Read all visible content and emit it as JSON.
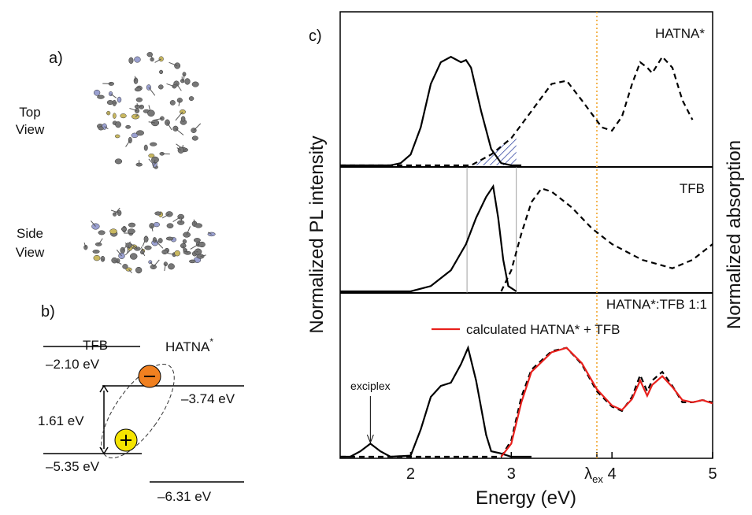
{
  "panel_a": {
    "label": "a)",
    "top_view": [
      "Top",
      "View"
    ],
    "side_view": [
      "Side",
      "View"
    ]
  },
  "panel_b": {
    "label": "b)",
    "tfb": "TFB",
    "hatna": "HATNA",
    "hatna_sup": "*",
    "levels": [
      "–2.10 eV",
      "–3.74 eV",
      "–5.35 eV",
      "–6.31 eV"
    ],
    "gap": "1.61 eV"
  },
  "chart_data": {
    "type": "line",
    "label": "c)",
    "xlabel": "Energy (eV)",
    "ylabel": "Normalized PL intensity",
    "y2label": "Normalized absorption",
    "xlim": [
      1.3,
      5
    ],
    "xticks": [
      2,
      3,
      {
        "value": 3.85,
        "label": "λ",
        "sub": "ex"
      },
      4,
      5
    ],
    "excitation": 3.85,
    "guides": [
      2.56,
      3.05
    ],
    "annotation": {
      "text": "exciplex",
      "x": 1.6
    },
    "panels": [
      {
        "title": "HATNA*",
        "ylim": [
          0,
          1.4
        ],
        "series": [
          {
            "style": "solid",
            "color": "#000000",
            "x": [
              1.3,
              1.8,
              1.9,
              2.0,
              2.1,
              2.2,
              2.3,
              2.4,
              2.5,
              2.55,
              2.6,
              2.7,
              2.8,
              2.9,
              3.0,
              3.1
            ],
            "values": [
              0,
              0,
              0.02,
              0.1,
              0.35,
              0.75,
              0.95,
              1.0,
              0.95,
              0.97,
              0.9,
              0.5,
              0.15,
              0.02,
              0,
              0
            ]
          },
          {
            "style": "dashed",
            "color": "#000000",
            "x": [
              1.3,
              2.6,
              2.8,
              3.0,
              3.2,
              3.4,
              3.55,
              3.7,
              3.9,
              4.0,
              4.1,
              4.2,
              4.28,
              4.35,
              4.4,
              4.5,
              4.6,
              4.7,
              4.8
            ],
            "values": [
              0,
              0,
              0.1,
              0.25,
              0.5,
              0.75,
              0.78,
              0.6,
              0.35,
              0.32,
              0.45,
              0.75,
              0.95,
              0.9,
              0.85,
              1.0,
              0.9,
              0.6,
              0.42
            ]
          }
        ]
      },
      {
        "title": "TFB",
        "ylim": [
          0,
          1.17
        ],
        "series": [
          {
            "style": "solid",
            "color": "#000000",
            "x": [
              1.3,
              2.0,
              2.2,
              2.4,
              2.55,
              2.65,
              2.75,
              2.82,
              2.87,
              2.92,
              2.97,
              3.05
            ],
            "values": [
              0,
              0,
              0.05,
              0.2,
              0.45,
              0.7,
              0.9,
              1.0,
              0.7,
              0.3,
              0.05,
              0
            ]
          },
          {
            "style": "dashed",
            "color": "#000000",
            "x": [
              2.9,
              3.0,
              3.1,
              3.2,
              3.3,
              3.4,
              3.6,
              3.8,
              4.0,
              4.3,
              4.6,
              4.8,
              5.0
            ],
            "values": [
              0,
              0.2,
              0.55,
              0.85,
              0.98,
              0.95,
              0.8,
              0.6,
              0.45,
              0.3,
              0.22,
              0.3,
              0.45
            ]
          }
        ]
      },
      {
        "title": "HATNA*:TFB 1:1",
        "ylim": [
          0,
          1.49
        ],
        "series": [
          {
            "style": "solid",
            "color": "#000000",
            "x": [
              1.3,
              1.4,
              1.5,
              1.6,
              1.7,
              1.8,
              2.0,
              2.1,
              2.2,
              2.3,
              2.4,
              2.5,
              2.57,
              2.65,
              2.75,
              2.8,
              2.9,
              3.0,
              3.2
            ],
            "values": [
              0,
              0,
              0.05,
              0.12,
              0.05,
              0,
              0.01,
              0.25,
              0.55,
              0.65,
              0.68,
              0.85,
              1.0,
              0.7,
              0.2,
              0.05,
              0.03,
              0,
              0
            ]
          },
          {
            "style": "dashed",
            "color": "#000000",
            "x": [
              1.3,
              2.9,
              3.0,
              3.1,
              3.2,
              3.4,
              3.55,
              3.7,
              3.85,
              4.0,
              4.1,
              4.2,
              4.28,
              4.35,
              4.4,
              4.5,
              4.6,
              4.7,
              4.8,
              4.9,
              5.0
            ],
            "values": [
              0,
              0,
              0.15,
              0.55,
              0.8,
              0.97,
              1.0,
              0.85,
              0.6,
              0.46,
              0.42,
              0.55,
              0.75,
              0.6,
              0.7,
              0.78,
              0.65,
              0.5,
              0.5,
              0.52,
              0.5
            ]
          },
          {
            "name": "calculated HATNA* + TFB",
            "style": "solid",
            "color": "#e8201c",
            "x": [
              2.9,
              3.0,
              3.1,
              3.2,
              3.4,
              3.55,
              3.7,
              3.85,
              4.0,
              4.1,
              4.2,
              4.28,
              4.35,
              4.4,
              4.5,
              4.6,
              4.7,
              4.8,
              4.9,
              5.0
            ],
            "values": [
              0,
              0.12,
              0.5,
              0.78,
              0.96,
              1.0,
              0.86,
              0.62,
              0.47,
              0.43,
              0.53,
              0.7,
              0.56,
              0.66,
              0.74,
              0.64,
              0.52,
              0.5,
              0.52,
              0.49
            ]
          }
        ]
      }
    ]
  }
}
